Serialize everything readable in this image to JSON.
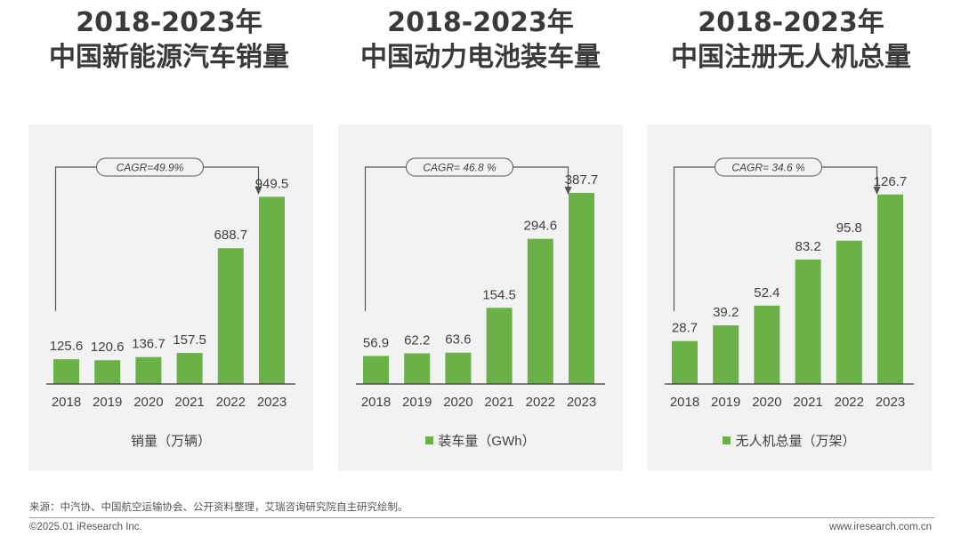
{
  "charts": [
    {
      "title_line1": "2018-2023年",
      "title_line2": "中国新能源汽车销量",
      "cagr": "CAGR=49.9%",
      "legend": "销量（万辆）",
      "show_swatch": false
    },
    {
      "title_line1": "2018-2023年",
      "title_line2": "中国动力电池装车量",
      "cagr": "CAGR= 46.8 %",
      "legend": "装车量（GWh）",
      "show_swatch": true
    },
    {
      "title_line1": "2018-2023年",
      "title_line2": "中国注册无人机总量",
      "cagr": "CAGR= 34.6 %",
      "legend": "无人机总量（万架）",
      "show_swatch": true
    }
  ],
  "chart_data": [
    {
      "type": "bar",
      "categories": [
        "2018",
        "2019",
        "2020",
        "2021",
        "2022",
        "2023"
      ],
      "values": [
        125.6,
        120.6,
        136.7,
        157.5,
        688.7,
        949.5
      ],
      "ylim": [
        0,
        1100
      ]
    },
    {
      "type": "bar",
      "categories": [
        "2018",
        "2019",
        "2020",
        "2021",
        "2022",
        "2023"
      ],
      "values": [
        56.9,
        62.2,
        63.6,
        154.5,
        294.6,
        387.7
      ],
      "ylim": [
        0,
        440
      ]
    },
    {
      "type": "bar",
      "categories": [
        "2018",
        "2019",
        "2020",
        "2021",
        "2022",
        "2023"
      ],
      "values": [
        28.7,
        39.2,
        52.4,
        83.2,
        95.8,
        126.7
      ],
      "ylim": [
        0,
        145
      ]
    }
  ],
  "colors": {
    "bar": "#6ab147",
    "axis": "#3a3a3a",
    "label": "#404040"
  },
  "footer": {
    "source": "来源：中汽协、中国航空运输协会、公开资料整理，艾瑞咨询研究院自主研究绘制。",
    "copyright": "©2025.01 iResearch Inc.",
    "website": "www.iresearch.com.cn"
  }
}
